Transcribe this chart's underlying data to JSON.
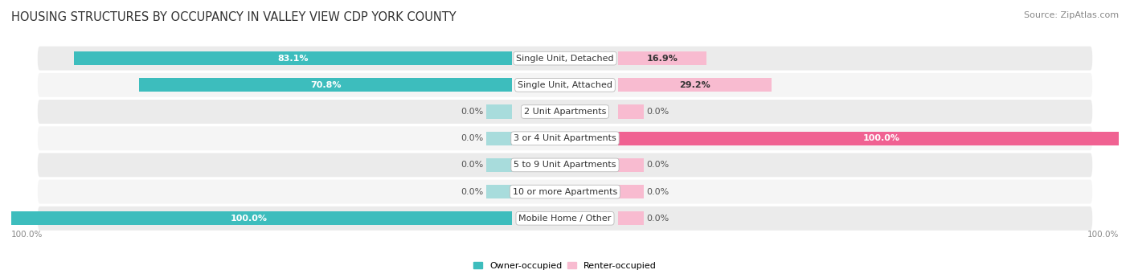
{
  "title": "HOUSING STRUCTURES BY OCCUPANCY IN VALLEY VIEW CDP YORK COUNTY",
  "source": "Source: ZipAtlas.com",
  "categories": [
    "Single Unit, Detached",
    "Single Unit, Attached",
    "2 Unit Apartments",
    "3 or 4 Unit Apartments",
    "5 to 9 Unit Apartments",
    "10 or more Apartments",
    "Mobile Home / Other"
  ],
  "owner_pct": [
    83.1,
    70.8,
    0.0,
    0.0,
    0.0,
    0.0,
    100.0
  ],
  "renter_pct": [
    16.9,
    29.2,
    0.0,
    100.0,
    0.0,
    0.0,
    0.0
  ],
  "owner_color": "#3DBDBD",
  "renter_color_strong": "#F06292",
  "owner_color_light": "#A8DCDC",
  "renter_color_light": "#F8BBD0",
  "row_bg_even": "#EBEBEB",
  "row_bg_odd": "#F5F5F5",
  "background_color": "#FFFFFF",
  "title_fontsize": 10.5,
  "source_fontsize": 8,
  "label_fontsize": 8,
  "bar_height": 0.52,
  "total_width": 100,
  "stub_size": 5,
  "axis_label_left": "100.0%",
  "axis_label_right": "100.0%"
}
